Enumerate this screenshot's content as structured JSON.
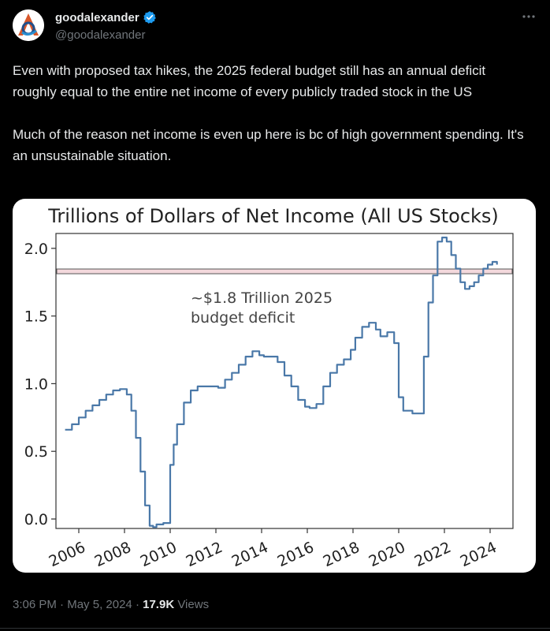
{
  "user": {
    "display_name": "goodalexander",
    "handle": "@goodalexander",
    "verified_icon": "verified-badge-icon",
    "avatar_icon": "logo-avatar-icon"
  },
  "tweet": {
    "text": "Even with proposed tax hikes, the 2025 federal budget still has an annual deficit roughly equal to the entire net income of every publicly traded stock in the US\n\nMuch of the reason net income is even up here is bc of high government spending. It's an unsustainable situation."
  },
  "meta": {
    "time": "3:06 PM",
    "date": "May 5, 2024",
    "views_count": "17.9K",
    "views_label": "Views",
    "separator": "·"
  },
  "colors": {
    "accent": "#1d9bf0",
    "line": "#4a78a8",
    "reference_fill": "#f3d8dc"
  },
  "chart_data": {
    "type": "line",
    "title": "Trillions of Dollars of Net Income (All US Stocks)",
    "xlabel": "",
    "ylabel": "",
    "xlim": [
      2005,
      2025
    ],
    "ylim": [
      -0.07,
      2.11
    ],
    "x_ticks": [
      2006,
      2008,
      2010,
      2012,
      2014,
      2016,
      2018,
      2020,
      2022,
      2024
    ],
    "x_tick_labels": [
      "2006",
      "2008",
      "2010",
      "2012",
      "2014",
      "2016",
      "2018",
      "2020",
      "2022",
      "2024"
    ],
    "y_ticks": [
      0.0,
      0.5,
      1.0,
      1.5,
      2.0
    ],
    "y_tick_labels": [
      "0.0",
      "0.5",
      "1.0",
      "1.5",
      "2.0"
    ],
    "grid": false,
    "reference_line": {
      "value": 1.83,
      "label_line1": "~$1.8 Trillion 2025",
      "label_line2": "budget deficit"
    },
    "series": [
      {
        "x": [
          2005.4,
          2005.7,
          2006.0,
          2006.3,
          2006.6,
          2006.9,
          2007.2,
          2007.5,
          2007.8,
          2008.1,
          2008.3,
          2008.5,
          2008.7,
          2008.9,
          2009.1,
          2009.25,
          2009.4,
          2009.7,
          2010.0,
          2010.15,
          2010.3,
          2010.6,
          2010.9,
          2011.2,
          2011.5,
          2011.8,
          2012.1,
          2012.4,
          2012.7,
          2013.0,
          2013.3,
          2013.6,
          2013.9,
          2014.1,
          2014.4,
          2014.7,
          2015.0,
          2015.3,
          2015.6,
          2015.9,
          2016.1,
          2016.4,
          2016.7,
          2017.0,
          2017.3,
          2017.6,
          2017.9,
          2018.1,
          2018.4,
          2018.7,
          2019.0,
          2019.2,
          2019.5,
          2019.8,
          2020.0,
          2020.2,
          2020.3,
          2020.6,
          2020.9,
          2021.1,
          2021.3,
          2021.5,
          2021.7,
          2021.9,
          2022.1,
          2022.3,
          2022.5,
          2022.7,
          2022.9,
          2023.1,
          2023.3,
          2023.5,
          2023.7,
          2023.9,
          2024.1,
          2024.3
        ],
        "y": [
          0.66,
          0.7,
          0.75,
          0.8,
          0.84,
          0.88,
          0.92,
          0.95,
          0.96,
          0.92,
          0.8,
          0.6,
          0.35,
          0.1,
          -0.05,
          -0.06,
          -0.04,
          -0.03,
          0.4,
          0.55,
          0.7,
          0.86,
          0.95,
          0.98,
          0.98,
          0.98,
          0.97,
          1.03,
          1.08,
          1.14,
          1.2,
          1.24,
          1.21,
          1.2,
          1.2,
          1.16,
          1.06,
          0.98,
          0.88,
          0.83,
          0.82,
          0.85,
          0.98,
          1.08,
          1.14,
          1.18,
          1.25,
          1.34,
          1.42,
          1.45,
          1.4,
          1.35,
          1.38,
          1.3,
          0.9,
          0.8,
          0.8,
          0.78,
          0.78,
          1.2,
          1.6,
          1.8,
          2.05,
          2.08,
          2.05,
          1.95,
          1.85,
          1.75,
          1.7,
          1.72,
          1.75,
          1.8,
          1.85,
          1.88,
          1.9,
          1.88
        ]
      }
    ]
  }
}
